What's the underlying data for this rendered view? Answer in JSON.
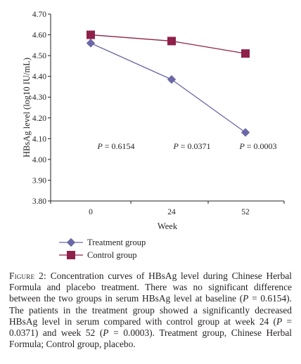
{
  "chart_data": {
    "type": "line",
    "x_categories": [
      "0",
      "24",
      "52"
    ],
    "xlabel": "Week",
    "ylabel": "HBsAg level (log10 IU/mL)",
    "ylim": [
      3.8,
      4.7
    ],
    "y_ticks": [
      "3.80",
      "3.90",
      "4.00",
      "4.10",
      "4.20",
      "4.30",
      "4.40",
      "4.50",
      "4.60",
      "4.70"
    ],
    "grid": false,
    "legend_position": "bottom-left",
    "series": [
      {
        "name": "Treatment group",
        "marker": "diamond",
        "color": "#6b68a8",
        "values": [
          4.56,
          4.385,
          4.13
        ]
      },
      {
        "name": "Control group",
        "marker": "square",
        "color": "#8e2049",
        "values": [
          4.6,
          4.57,
          4.51
        ]
      }
    ],
    "annotations": [
      {
        "label": "P = 0.6154",
        "at": "0"
      },
      {
        "label": "P = 0.0371",
        "at": "24"
      },
      {
        "label": "P = 0.0003",
        "at": "52"
      }
    ]
  },
  "caption": {
    "label": "Figure 2:",
    "text": "Concentration curves of HBsAg level during Chinese Herbal Formula and placebo treatment. There was no significant difference between the two groups in serum HBsAg level at baseline (P = 0.6154). The patients in the treatment group showed a significantly decreased HBsAg level in serum compared with control group at week 24 (P = 0.0371) and week 52 (P = 0.0003). Treatment group, Chinese Herbal Formula; Control group, placebo."
  }
}
